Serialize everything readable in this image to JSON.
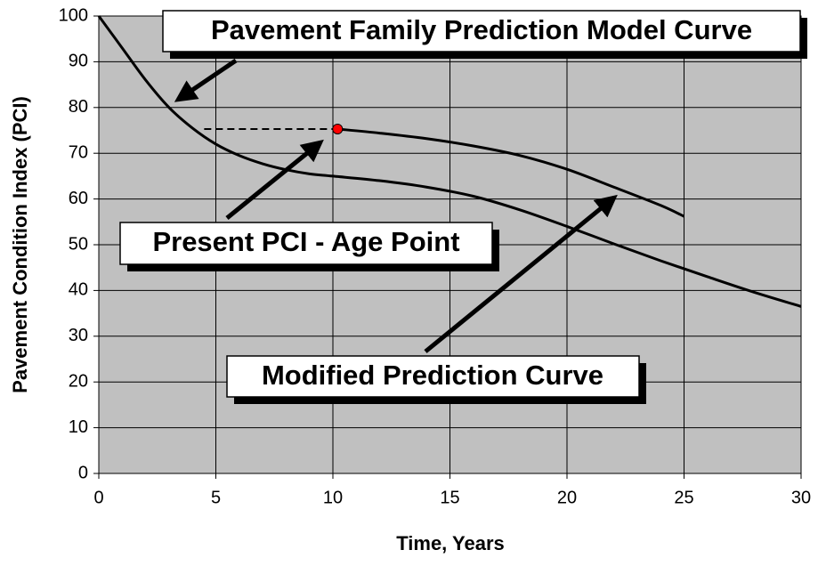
{
  "chart_data": {
    "type": "line",
    "xlabel": "Time, Years",
    "ylabel": "Pavement Condition Index (PCI)",
    "xlim": [
      0,
      30
    ],
    "ylim": [
      0,
      100
    ],
    "xticks": [
      0,
      5,
      10,
      15,
      20,
      25,
      30
    ],
    "yticks": [
      0,
      10,
      20,
      30,
      40,
      50,
      60,
      70,
      80,
      90,
      100
    ],
    "grid": true,
    "series": [
      {
        "color": "#000000",
        "x": [
          0,
          1,
          2,
          3,
          4,
          5,
          6,
          7,
          8,
          9,
          10,
          12,
          14,
          16,
          18,
          20,
          22,
          24,
          26,
          28,
          30
        ],
        "values": [
          100,
          93,
          86,
          80,
          75.5,
          72,
          69.5,
          67.7,
          66.4,
          65.5,
          65,
          64,
          62.6,
          60.6,
          57.6,
          54,
          50.2,
          46.5,
          43,
          39.6,
          36.5
        ]
      },
      {
        "color": "#000000",
        "x": [
          10.2,
          12,
          14,
          16,
          18,
          20,
          22,
          24,
          25
        ],
        "values": [
          75.3,
          74.4,
          73.2,
          71.6,
          69.5,
          66.5,
          62.6,
          58.6,
          56.2
        ]
      }
    ],
    "point": {
      "x": 10.2,
      "y": 75.3,
      "color": "#ff0000"
    },
    "dashed_line": {
      "x": [
        4.5,
        10.2
      ],
      "y": 75.3
    },
    "annotations": [
      "Pavement Family Prediction Model Curve",
      "Present PCI - Age Point",
      "Modified Prediction Curve"
    ]
  }
}
